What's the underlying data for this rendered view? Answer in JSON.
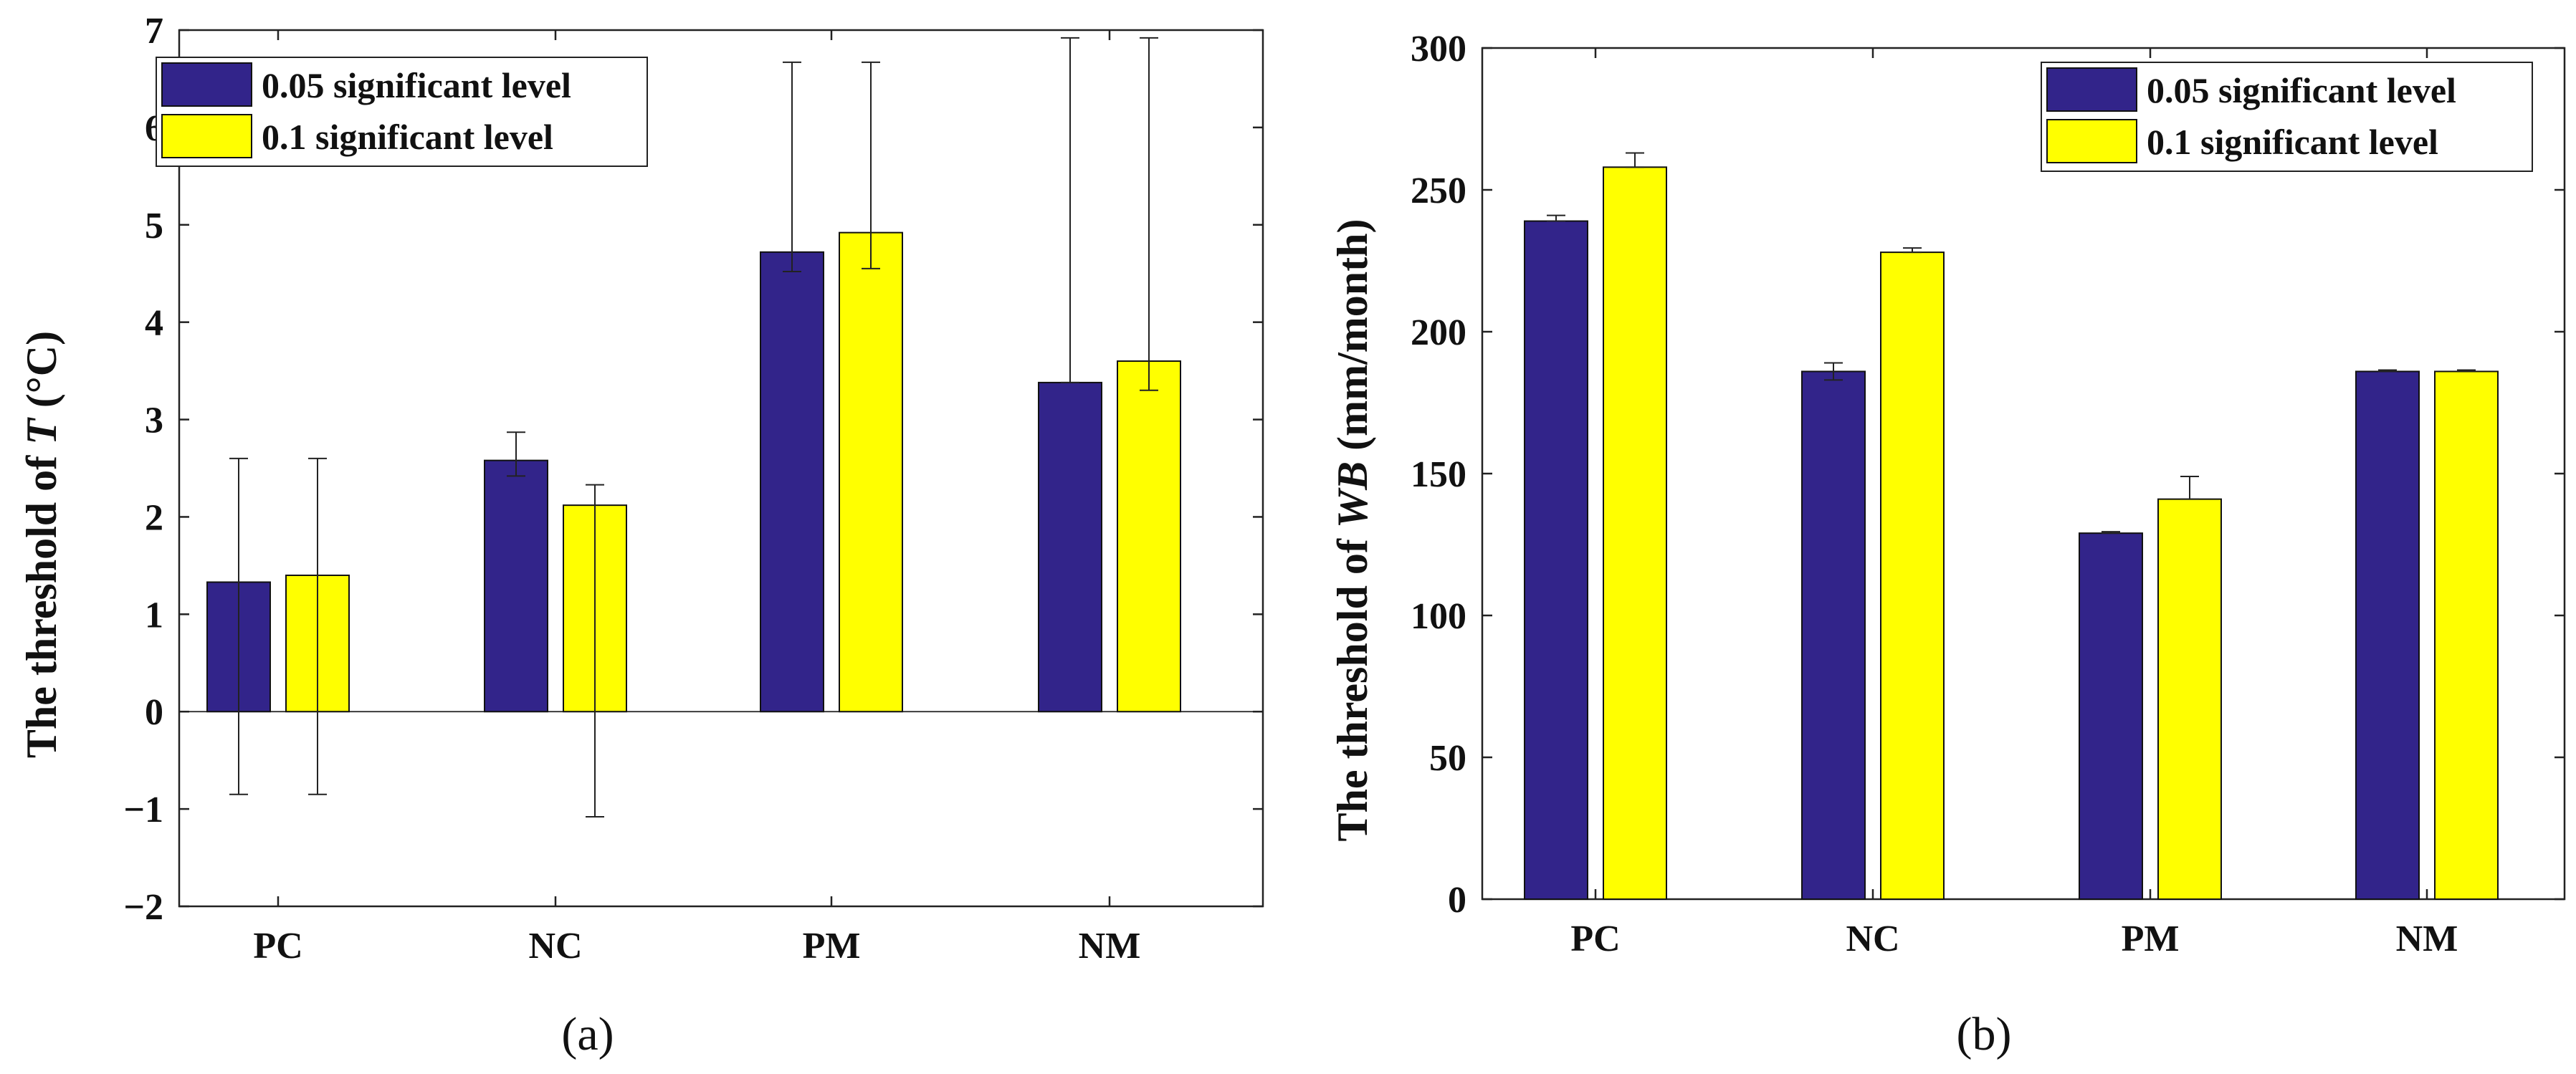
{
  "colors": {
    "series1": "#32248a",
    "series2": "#ffff00",
    "axis": "#222222"
  },
  "chart_data": [
    {
      "type": "bar",
      "panel_label": "(a)",
      "categories": [
        "PC",
        "NC",
        "PM",
        "NM"
      ],
      "ylabel_prefix": "The threshold of ",
      "ylabel_var": "T",
      "ylabel_suffix": " (°C)",
      "ylim": [
        -2,
        7
      ],
      "yticks": [
        -2,
        -1,
        0,
        1,
        2,
        3,
        4,
        5,
        6,
        7
      ],
      "ytick_labels": [
        "−2",
        "−1",
        "0",
        "1",
        "2",
        "3",
        "4",
        "5",
        "6",
        "7"
      ],
      "zero_line": true,
      "legend_position": "top-left",
      "series": [
        {
          "name": "0.05 significant level",
          "color": "#32248a",
          "values": [
            1.33,
            2.58,
            4.72,
            3.38
          ],
          "err_low": [
            -0.85,
            2.42,
            4.52,
            3.38
          ],
          "err_high": [
            2.6,
            2.87,
            6.67,
            6.92
          ]
        },
        {
          "name": "0.1 significant level",
          "color": "#ffff00",
          "values": [
            1.4,
            2.12,
            4.92,
            3.6
          ],
          "err_low": [
            -0.85,
            -1.08,
            4.55,
            3.3
          ],
          "err_high": [
            2.6,
            2.33,
            6.67,
            6.92
          ]
        }
      ]
    },
    {
      "type": "bar",
      "panel_label": "(b)",
      "categories": [
        "PC",
        "NC",
        "PM",
        "NM"
      ],
      "ylabel_prefix": "The threshold of ",
      "ylabel_var": "WB",
      "ylabel_suffix": "  (mm/month)",
      "ylim": [
        0,
        300
      ],
      "yticks": [
        0,
        50,
        100,
        150,
        200,
        250,
        300
      ],
      "ytick_labels": [
        "0",
        "50",
        "100",
        "150",
        "200",
        "250",
        "300"
      ],
      "zero_line": false,
      "legend_position": "top-right",
      "series": [
        {
          "name": "0.05 significant level",
          "color": "#32248a",
          "values": [
            239,
            186,
            129,
            186
          ],
          "err_low": [
            239,
            183,
            129,
            186
          ],
          "err_high": [
            241,
            189,
            129.5,
            186.5
          ]
        },
        {
          "name": "0.1 significant level",
          "color": "#ffff00",
          "values": [
            258,
            228,
            141,
            186
          ],
          "err_low": [
            258,
            228,
            141,
            186
          ],
          "err_high": [
            263,
            229.5,
            149,
            186.5
          ]
        }
      ]
    }
  ]
}
